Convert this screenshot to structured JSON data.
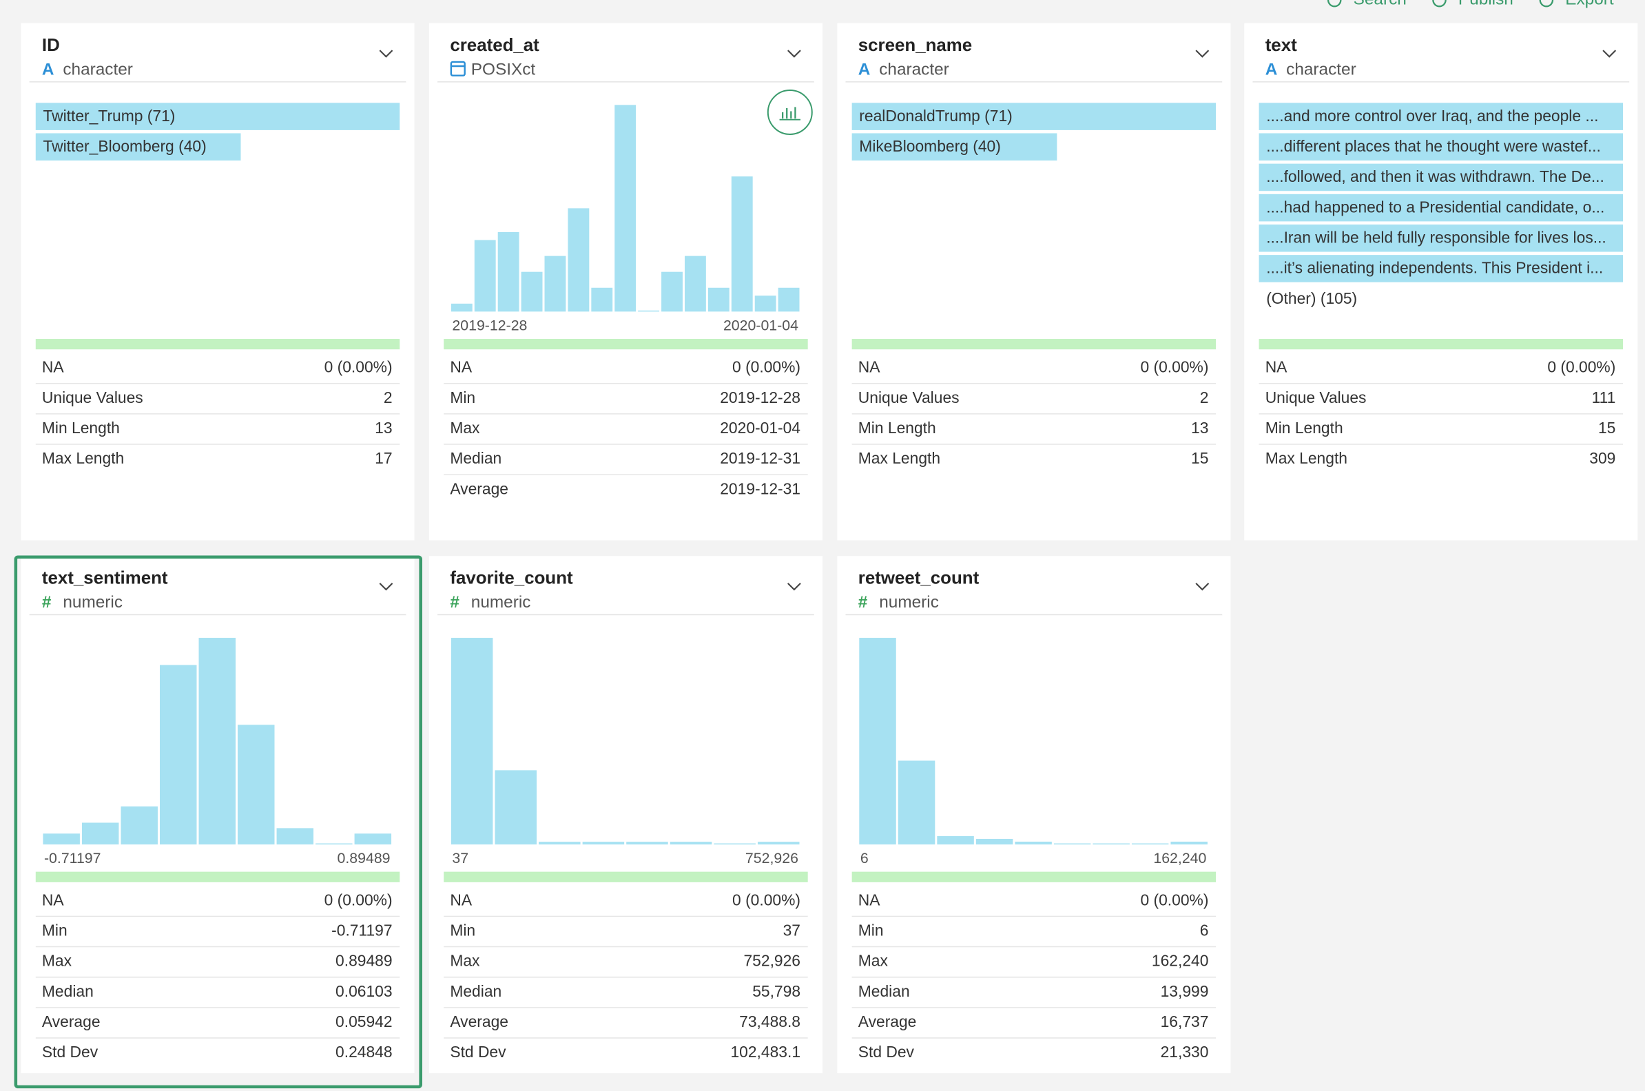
{
  "toolbar": [
    "Search",
    "Publish",
    "Export"
  ],
  "cards": [
    {
      "name": "ID",
      "icon": "A",
      "type": "character",
      "categories": [
        {
          "label": "Twitter_Trump (71)",
          "count": 71
        },
        {
          "label": "Twitter_Bloomberg (40)",
          "count": 40
        }
      ],
      "stats": [
        [
          "NA",
          "0 (0.00%)"
        ],
        [
          "Unique Values",
          "2"
        ],
        [
          "Min Length",
          "13"
        ],
        [
          "Max Length",
          "17"
        ]
      ]
    },
    {
      "name": "created_at",
      "type": "POSIXct",
      "histogram": {
        "counts": [
          1,
          9,
          10,
          5,
          7,
          13,
          3,
          26,
          0,
          5,
          7,
          3,
          17,
          2,
          3
        ],
        "min_label": "2019-12-28",
        "max_label": "2020-01-04"
      },
      "stats": [
        [
          "NA",
          "0 (0.00%)"
        ],
        [
          "Min",
          "2019-12-28"
        ],
        [
          "Max",
          "2020-01-04"
        ],
        [
          "Median",
          "2019-12-31"
        ],
        [
          "Average",
          "2019-12-31"
        ]
      ]
    },
    {
      "name": "screen_name",
      "icon": "A",
      "type": "character",
      "categories": [
        {
          "label": "realDonaldTrump (71)",
          "count": 71
        },
        {
          "label": "MikeBloomberg (40)",
          "count": 40
        }
      ],
      "stats": [
        [
          "NA",
          "0 (0.00%)"
        ],
        [
          "Unique Values",
          "2"
        ],
        [
          "Min Length",
          "13"
        ],
        [
          "Max Length",
          "15"
        ]
      ]
    },
    {
      "name": "text",
      "icon": "A",
      "type": "character",
      "categories": [
        {
          "label": "....and more control over Iraq, and the people ...",
          "count": 1
        },
        {
          "label": "....different places that he thought were wastef...",
          "count": 1
        },
        {
          "label": "....followed, and then it was withdrawn. The De...",
          "count": 1
        },
        {
          "label": "....had happened to a Presidential candidate, o...",
          "count": 1
        },
        {
          "label": "....Iran will be held fully responsible for lives los...",
          "count": 1
        },
        {
          "label": "....it’s alienating independents. This President i...",
          "count": 1
        },
        {
          "label": "(Other) (105)"
        }
      ],
      "stats": [
        [
          "NA",
          "0 (0.00%)"
        ],
        [
          "Unique Values",
          "111"
        ],
        [
          "Min Length",
          "15"
        ],
        [
          "Max Length",
          "309"
        ]
      ]
    },
    {
      "name": "text_sentiment",
      "icon": "#",
      "type": "numeric",
      "selected": true,
      "histogram": {
        "counts": [
          2,
          4,
          7,
          33,
          38,
          22,
          3,
          0,
          2
        ],
        "min_label": "-0.71197",
        "max_label": "0.89489"
      },
      "stats": [
        [
          "NA",
          "0 (0.00%)"
        ],
        [
          "Min",
          "-0.71197"
        ],
        [
          "Max",
          "0.89489"
        ],
        [
          "Median",
          "0.06103"
        ],
        [
          "Average",
          "0.05942"
        ],
        [
          "Std Dev",
          "0.24848"
        ]
      ]
    },
    {
      "name": "favorite_count",
      "icon": "#",
      "type": "numeric",
      "histogram": {
        "counts": [
          78,
          28,
          1,
          1,
          1,
          1,
          0,
          1
        ],
        "min_label": "37",
        "max_label": "752,926"
      },
      "stats": [
        [
          "NA",
          "0 (0.00%)"
        ],
        [
          "Min",
          "37"
        ],
        [
          "Max",
          "752,926"
        ],
        [
          "Median",
          "55,798"
        ],
        [
          "Average",
          "73,488.8"
        ],
        [
          "Std Dev",
          "102,483.1"
        ]
      ]
    },
    {
      "name": "retweet_count",
      "icon": "#",
      "type": "numeric",
      "histogram": {
        "counts": [
          74,
          30,
          3,
          2,
          1,
          0,
          0,
          0,
          1
        ],
        "min_label": "6",
        "max_label": "162,240"
      },
      "stats": [
        [
          "NA",
          "0 (0.00%)"
        ],
        [
          "Min",
          "6"
        ],
        [
          "Max",
          "162,240"
        ],
        [
          "Median",
          "13,999"
        ],
        [
          "Average",
          "16,737"
        ],
        [
          "Std Dev",
          "21,330"
        ]
      ]
    }
  ]
}
